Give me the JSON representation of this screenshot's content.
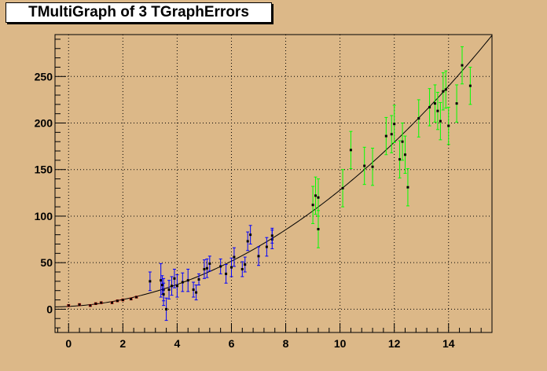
{
  "title": "TMultiGraph of 3 TGraphErrors",
  "colors": {
    "canvas_bg": "#dcb888",
    "plot_bg": "#dcb888",
    "grid": "#000000",
    "series_red": "#ff0000",
    "series_blue": "#0000ff",
    "series_green": "#00ff00",
    "fit_line": "#000000"
  },
  "chart_data": {
    "type": "scatter",
    "title": "TMultiGraph of 3 TGraphErrors",
    "xlabel": "",
    "ylabel": "",
    "xlim": [
      -0.5,
      15.6
    ],
    "ylim": [
      -25,
      295
    ],
    "x_ticks": [
      0,
      2,
      4,
      6,
      8,
      10,
      12,
      14
    ],
    "y_ticks": [
      0,
      50,
      100,
      150,
      200,
      250
    ],
    "x_tick_labels": [
      "0",
      "2",
      "4",
      "6",
      "8",
      "10",
      "12",
      "14"
    ],
    "y_tick_labels": [
      "0",
      "50",
      "100",
      "150",
      "200",
      "250"
    ],
    "grid": true,
    "legend": "none",
    "fit": {
      "type": "polynomial",
      "coefficients": [
        3,
        1.5,
        1.1
      ],
      "x_range": [
        -0.5,
        15.6
      ]
    },
    "series": [
      {
        "color": "#ff0000",
        "x": [
          0.0,
          0.4,
          0.8,
          1.0,
          1.2,
          1.6,
          1.8,
          2.0,
          2.3,
          2.5
        ],
        "y": [
          4,
          5,
          4,
          6,
          7,
          7,
          9,
          10,
          11,
          13
        ],
        "ex": [
          0.05,
          0.05,
          0.05,
          0.05,
          0.05,
          0.05,
          0.05,
          0.05,
          0.05,
          0.05
        ],
        "ey": [
          1,
          1,
          1,
          1,
          1,
          1,
          1,
          1,
          1,
          1
        ]
      },
      {
        "color": "#0000ff",
        "x": [
          3.0,
          3.4,
          3.45,
          3.5,
          3.5,
          3.6,
          3.7,
          3.8,
          3.9,
          4.0,
          4.2,
          4.4,
          4.6,
          4.7,
          4.8,
          5.0,
          5.1,
          5.2,
          5.6,
          5.8,
          6.0,
          6.1,
          6.4,
          6.5,
          6.6,
          6.7,
          7.0,
          7.3,
          7.5,
          7.5
        ],
        "y": [
          30,
          31,
          26,
          21,
          16,
          0,
          21,
          25,
          33,
          25,
          29,
          31,
          21,
          18,
          32,
          43,
          44,
          49,
          46,
          38,
          45,
          56,
          43,
          48,
          73,
          80,
          57,
          67,
          75,
          79
        ],
        "ey": [
          10,
          18,
          10,
          12,
          12,
          12,
          10,
          10,
          10,
          12,
          10,
          12,
          8,
          8,
          6,
          10,
          10,
          8,
          8,
          10,
          10,
          10,
          8,
          8,
          10,
          10,
          10,
          10,
          10,
          8
        ]
      },
      {
        "color": "#00ff00",
        "x": [
          9.0,
          9.1,
          9.2,
          9.2,
          10.1,
          10.4,
          10.9,
          11.2,
          11.7,
          11.9,
          12.0,
          12.2,
          12.3,
          12.4,
          12.5,
          12.9,
          13.3,
          13.5,
          13.6,
          13.7,
          13.8,
          13.9,
          14.0,
          14.3,
          14.5,
          14.8
        ],
        "y": [
          112,
          122,
          86,
          120,
          130,
          171,
          154,
          153,
          186,
          188,
          199,
          161,
          180,
          166,
          131,
          205,
          217,
          221,
          213,
          202,
          234,
          236,
          197,
          221,
          262,
          240
        ],
        "ey": [
          20,
          20,
          20,
          20,
          20,
          20,
          20,
          20,
          20,
          20,
          20,
          20,
          20,
          20,
          20,
          20,
          20,
          20,
          20,
          20,
          20,
          20,
          20,
          20,
          20,
          20
        ]
      }
    ]
  }
}
